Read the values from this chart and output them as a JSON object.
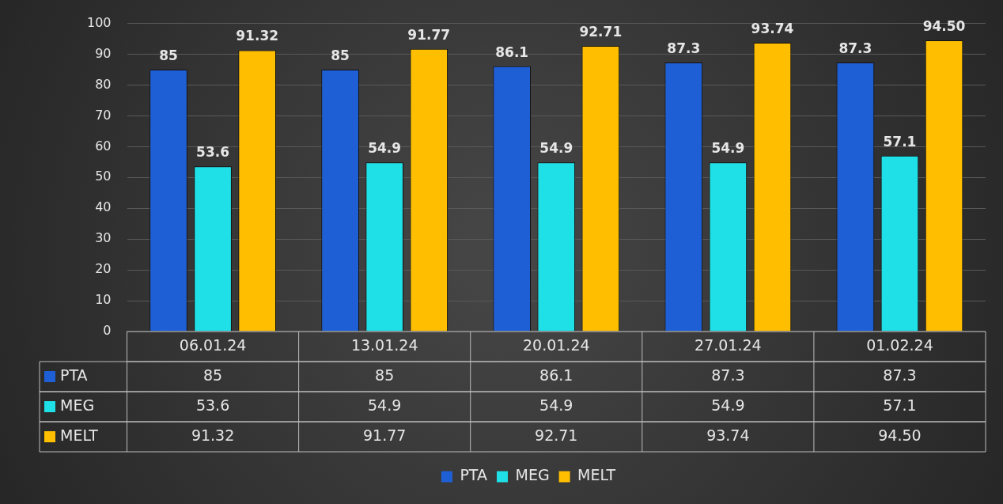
{
  "chart_data": {
    "type": "bar",
    "categories": [
      "06.01.24",
      "13.01.24",
      "20.01.24",
      "27.01.24",
      "01.02.24"
    ],
    "series": [
      {
        "name": "PTA",
        "color": "#1f5fd6",
        "values": [
          85,
          85,
          86.1,
          87.3,
          87.3
        ],
        "value_labels": [
          "85",
          "85",
          "86.1",
          "87.3",
          "87.3"
        ]
      },
      {
        "name": "MEG",
        "color": "#1ee0e6",
        "values": [
          53.6,
          54.9,
          54.9,
          54.9,
          57.1
        ],
        "value_labels": [
          "53.6",
          "54.9",
          "54.9",
          "54.9",
          "57.1"
        ]
      },
      {
        "name": "MELT",
        "color": "#ffbf00",
        "values": [
          91.32,
          91.77,
          92.71,
          93.74,
          94.5
        ],
        "value_labels": [
          "91.32",
          "91.77",
          "92.71",
          "93.74",
          "94.50"
        ]
      }
    ],
    "ylim": [
      0,
      100
    ],
    "yticks": [
      0,
      10,
      20,
      30,
      40,
      50,
      60,
      70,
      80,
      90,
      100
    ],
    "grid": "y",
    "legend": "bottom"
  }
}
